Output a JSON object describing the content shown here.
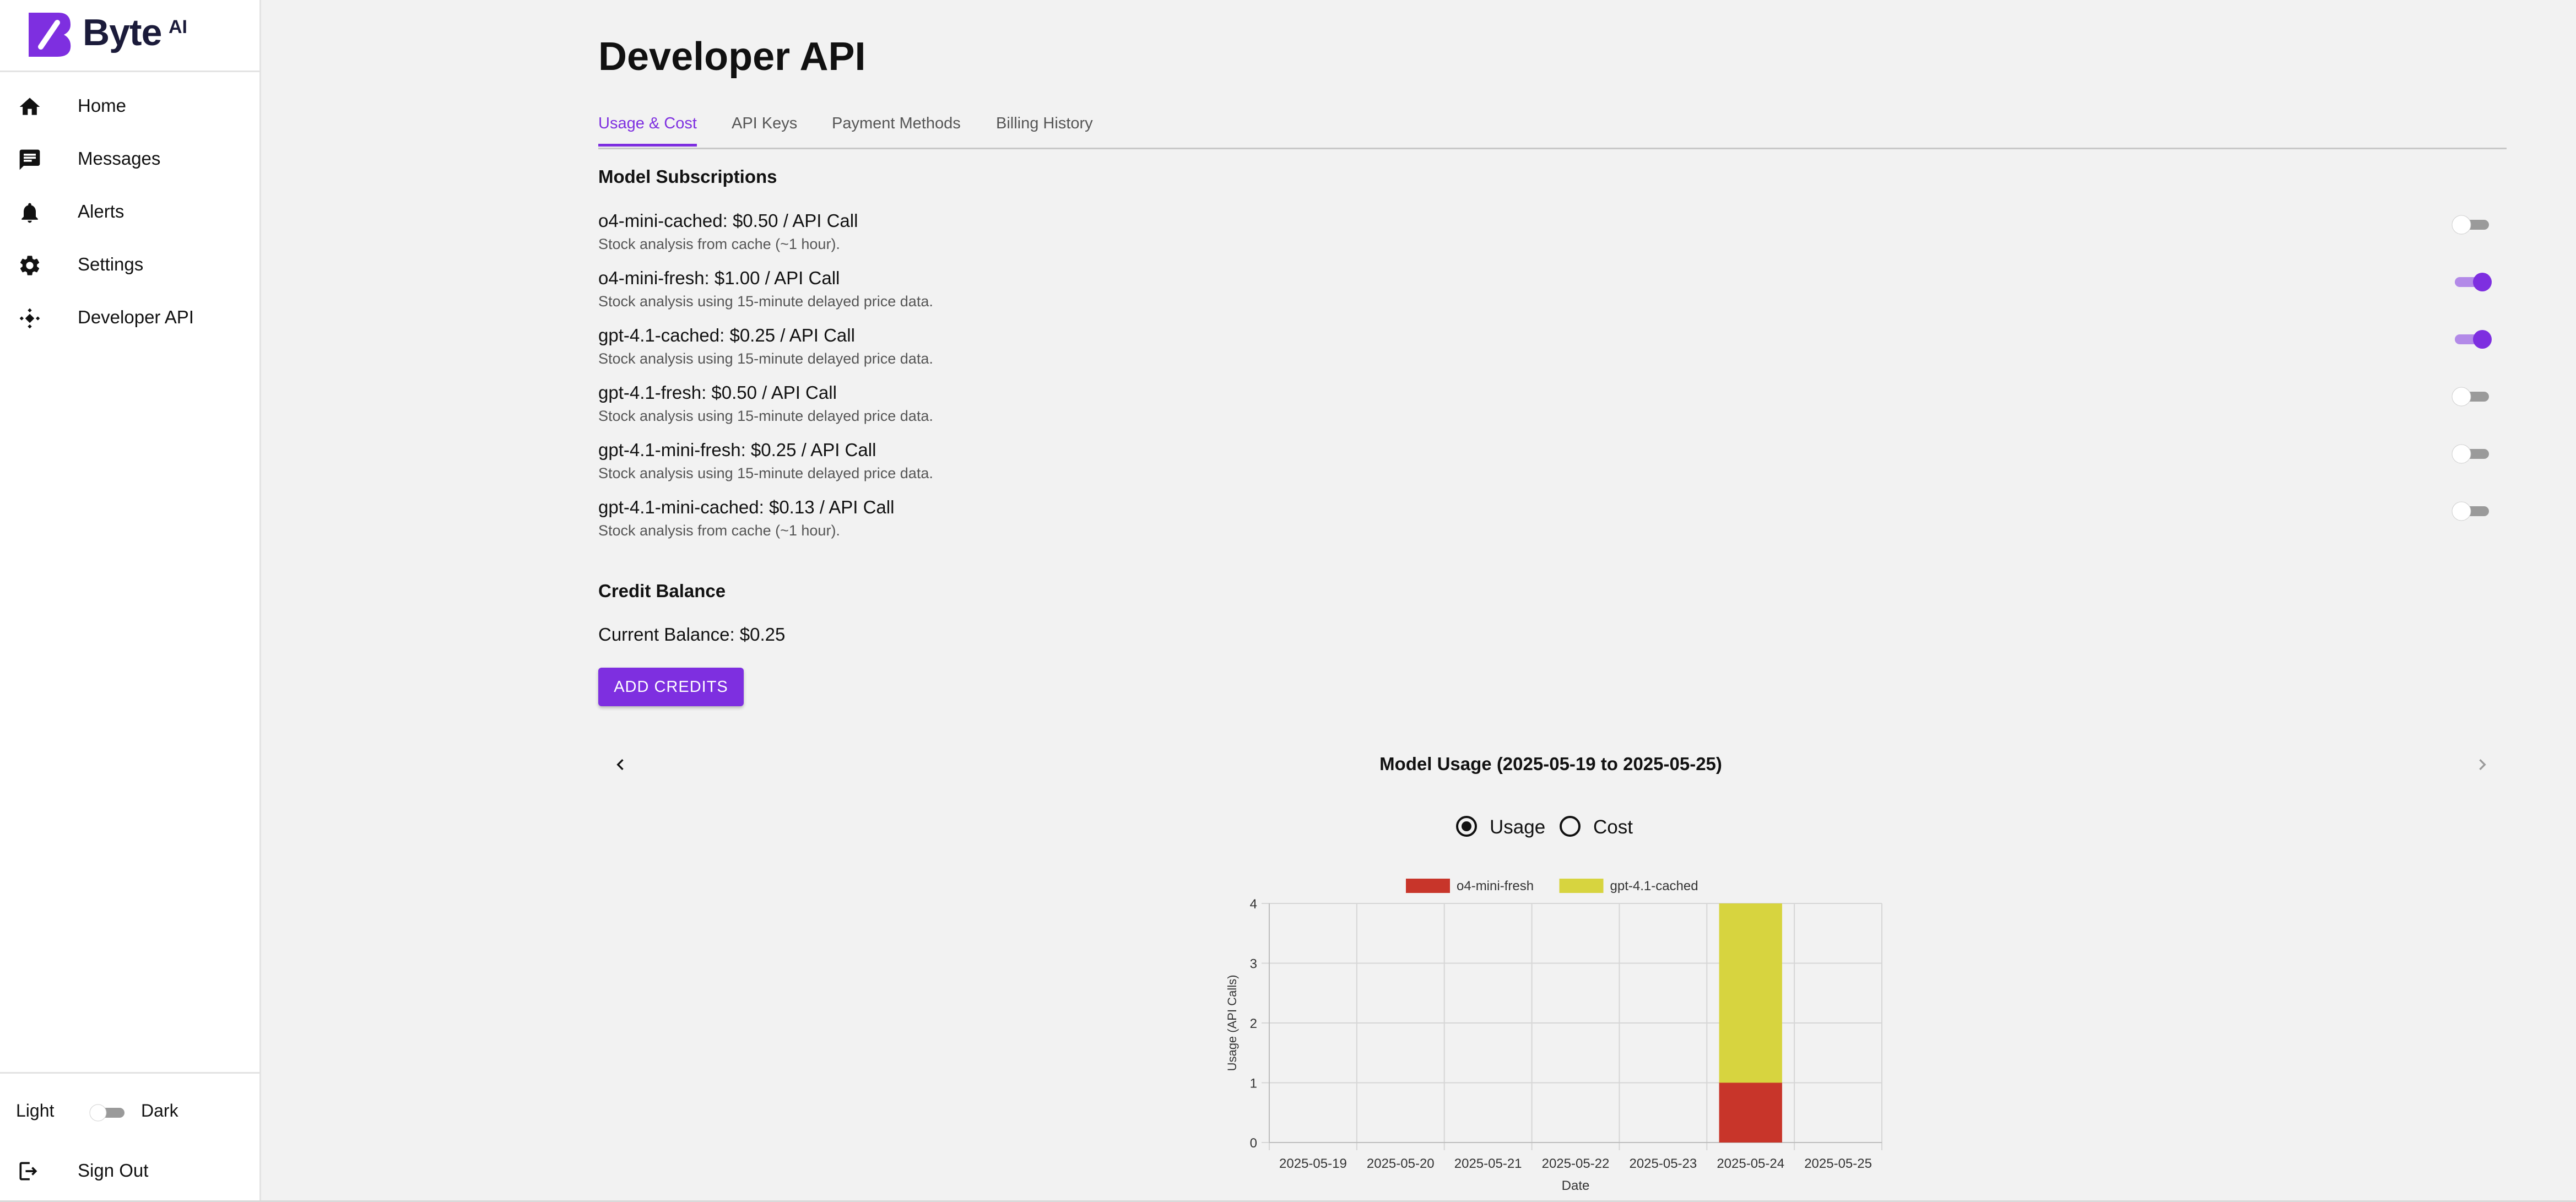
{
  "app": {
    "brand": "Byte",
    "brand_suffix": "AI",
    "accent_color": "#7e2fe0"
  },
  "sidebar": {
    "items": [
      {
        "label": "Home",
        "icon": "home-icon"
      },
      {
        "label": "Messages",
        "icon": "message-icon"
      },
      {
        "label": "Alerts",
        "icon": "bell-icon"
      },
      {
        "label": "Settings",
        "icon": "gear-icon"
      },
      {
        "label": "Developer API",
        "icon": "api-icon"
      }
    ],
    "theme": {
      "light_label": "Light",
      "dark_label": "Dark",
      "dark_enabled": false
    },
    "signout_label": "Sign Out"
  },
  "page": {
    "title": "Developer API",
    "tabs": [
      "Usage & Cost",
      "API Keys",
      "Payment Methods",
      "Billing History"
    ],
    "active_tab": "Usage & Cost"
  },
  "subscriptions": {
    "title": "Model Subscriptions",
    "items": [
      {
        "name": "o4-mini-cached: $0.50 / API Call",
        "desc": "Stock analysis from cache (~1 hour).",
        "enabled": false
      },
      {
        "name": "o4-mini-fresh: $1.00 / API Call",
        "desc": "Stock analysis using 15-minute delayed price data.",
        "enabled": true
      },
      {
        "name": "gpt-4.1-cached: $0.25 / API Call",
        "desc": "Stock analysis using 15-minute delayed price data.",
        "enabled": true
      },
      {
        "name": "gpt-4.1-fresh: $0.50 / API Call",
        "desc": "Stock analysis using 15-minute delayed price data.",
        "enabled": false
      },
      {
        "name": "gpt-4.1-mini-fresh: $0.25 / API Call",
        "desc": "Stock analysis using 15-minute delayed price data.",
        "enabled": false
      },
      {
        "name": "gpt-4.1-mini-cached: $0.13 / API Call",
        "desc": "Stock analysis from cache (~1 hour).",
        "enabled": false
      }
    ]
  },
  "credit": {
    "title": "Credit Balance",
    "balance_text": "Current Balance: $0.25",
    "add_button": "ADD CREDITS"
  },
  "usage": {
    "period_title": "Model Usage (2025-05-19 to 2025-05-25)",
    "radio_options": [
      "Usage",
      "Cost"
    ],
    "selected": "Usage"
  },
  "chart_data": {
    "type": "bar",
    "stacked": true,
    "categories": [
      "2025-05-19",
      "2025-05-20",
      "2025-05-21",
      "2025-05-22",
      "2025-05-23",
      "2025-05-24",
      "2025-05-25"
    ],
    "series": [
      {
        "name": "o4-mini-fresh",
        "color": "#c8352a",
        "values": [
          0,
          0,
          0,
          0,
          0,
          1,
          0
        ]
      },
      {
        "name": "gpt-4.1-cached",
        "color": "#d7d43f",
        "values": [
          0,
          0,
          0,
          0,
          0,
          3,
          0
        ]
      }
    ],
    "xlabel": "Date",
    "ylabel": "Usage (API Calls)",
    "ylim": [
      0,
      4
    ],
    "yticks": [
      "0",
      "1",
      "2",
      "3",
      "4"
    ],
    "grid": true,
    "legend_position": "top"
  }
}
